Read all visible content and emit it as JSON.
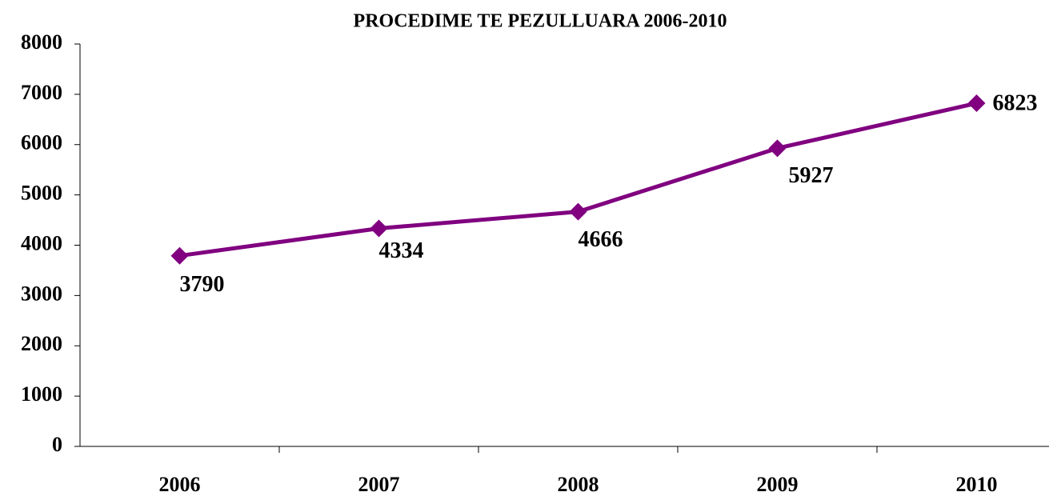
{
  "chart_data": {
    "type": "line",
    "title": "PROCEDIME TE PEZULLUARA 2006-2010",
    "categories": [
      "2006",
      "2007",
      "2008",
      "2009",
      "2010"
    ],
    "series": [
      {
        "name": "Procedime",
        "color": "#800080",
        "values": [
          3790,
          4334,
          4666,
          5927,
          6823
        ]
      }
    ],
    "ylim": [
      0,
      8000
    ],
    "yticks": [
      0,
      1000,
      2000,
      3000,
      4000,
      5000,
      6000,
      7000,
      8000
    ],
    "grid": false,
    "legend": false
  }
}
